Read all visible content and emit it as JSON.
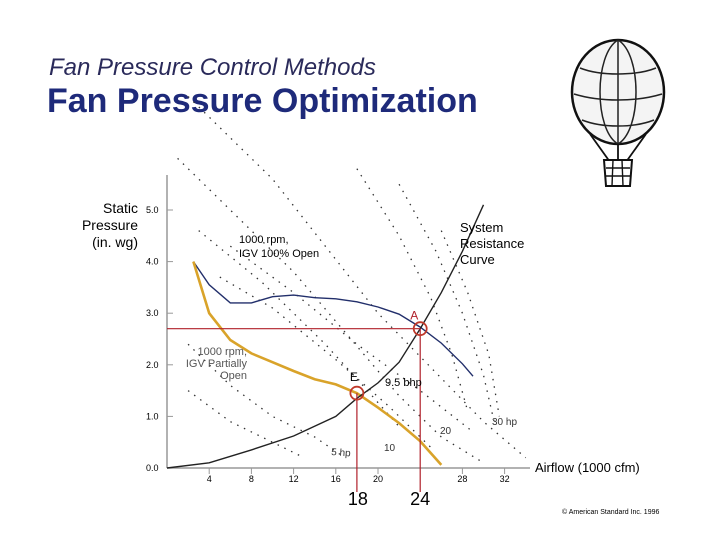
{
  "header": {
    "subtitle": "Fan Pressure Control Methods",
    "title": "Fan Pressure Optimization"
  },
  "footer": {
    "copyright": "© American Standard Inc. 1996"
  },
  "colors": {
    "title": "#1e2a7a",
    "accent_curve": "#d9a32a",
    "reference_line": "#b0202a",
    "marker": "#c0392b"
  },
  "balloon_icon": "hot-air-balloon-icon",
  "chart_data": {
    "type": "line",
    "ylabel": "Static Pressure (in. wg)",
    "xlabel": "Airflow (1000 cfm)",
    "xlim": [
      0,
      36
    ],
    "ylim": [
      0,
      5.5
    ],
    "y_ticks": [
      "0.0",
      "1.0",
      "2.0",
      "3.0",
      "4.0",
      "5.0"
    ],
    "x_ticks": [
      "4",
      "8",
      "12",
      "16",
      "20",
      "28",
      "32"
    ],
    "series": [
      {
        "points": [
          [
            2.5,
            4.0
          ],
          [
            4.0,
            3.55
          ],
          [
            6.0,
            3.2
          ],
          [
            8.0,
            3.2
          ],
          [
            10.0,
            3.32
          ],
          [
            12.0,
            3.35
          ],
          [
            14.0,
            3.3
          ],
          [
            16.0,
            3.28
          ],
          [
            18.0,
            3.22
          ],
          [
            20.0,
            3.12
          ],
          [
            22.0,
            2.98
          ],
          [
            24.0,
            2.73
          ],
          [
            26.0,
            2.42
          ],
          [
            28.0,
            2.02
          ],
          [
            29.0,
            1.78
          ]
        ]
      },
      {
        "points": [
          [
            2.5,
            4.0
          ],
          [
            4.0,
            3.0
          ],
          [
            6.0,
            2.48
          ],
          [
            8.0,
            2.22
          ],
          [
            10.0,
            2.05
          ],
          [
            12.0,
            1.88
          ],
          [
            14.0,
            1.72
          ],
          [
            16.0,
            1.62
          ],
          [
            18.0,
            1.45
          ],
          [
            20.0,
            1.17
          ],
          [
            22.0,
            0.87
          ],
          [
            24.0,
            0.52
          ],
          [
            26.0,
            0.06
          ]
        ]
      },
      {
        "points": [
          [
            0,
            0
          ],
          [
            4,
            0.1
          ],
          [
            8,
            0.35
          ],
          [
            12,
            0.62
          ],
          [
            16,
            1.0
          ],
          [
            18,
            1.35
          ],
          [
            20,
            1.65
          ],
          [
            22,
            2.05
          ],
          [
            24,
            2.7
          ],
          [
            26,
            3.4
          ],
          [
            28,
            4.2
          ],
          [
            30,
            5.1
          ]
        ]
      }
    ],
    "points": [
      {
        "label": "A",
        "x": 24,
        "y": 2.7
      },
      {
        "label": "E",
        "x": 18,
        "y": 1.45
      }
    ],
    "reference_lines": [
      "18",
      "24"
    ],
    "annotations": {
      "full_open": "1000 rpm, IGV 100% Open",
      "system": "System Resistance Curve",
      "partial": "1000 rpm, IGV Partially Open",
      "power": "9.5 bhp",
      "hp5": "5 hp",
      "hp10": "10",
      "hp20": "20",
      "hp30": "30 hp"
    },
    "grid": false,
    "legend": "none"
  }
}
